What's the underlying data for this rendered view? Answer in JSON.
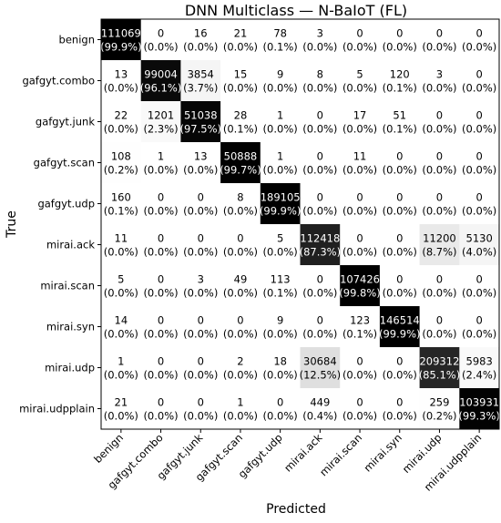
{
  "chart_data": {
    "type": "heatmap",
    "title": "DNN Multiclass — N-BaIoT (FL)",
    "xlabel": "Predicted",
    "ylabel": "True",
    "labels": [
      "benign",
      "gafgyt.combo",
      "gafgyt.junk",
      "gafgyt.scan",
      "gafgyt.udp",
      "mirai.ack",
      "mirai.scan",
      "mirai.syn",
      "mirai.udp",
      "mirai.udpplain"
    ],
    "matrix": [
      [
        111069,
        0,
        16,
        21,
        78,
        3,
        0,
        0,
        0,
        0
      ],
      [
        13,
        99004,
        3854,
        15,
        9,
        8,
        5,
        120,
        3,
        0
      ],
      [
        22,
        1201,
        51038,
        28,
        1,
        0,
        17,
        51,
        0,
        0
      ],
      [
        108,
        1,
        13,
        50888,
        1,
        0,
        11,
        0,
        0,
        0
      ],
      [
        160,
        0,
        0,
        8,
        189105,
        0,
        0,
        0,
        0,
        0
      ],
      [
        11,
        0,
        0,
        0,
        5,
        112418,
        0,
        0,
        11200,
        5130
      ],
      [
        5,
        0,
        3,
        49,
        113,
        0,
        107426,
        0,
        0,
        0
      ],
      [
        14,
        0,
        0,
        0,
        9,
        0,
        123,
        146514,
        0,
        0
      ],
      [
        1,
        0,
        0,
        2,
        18,
        30684,
        0,
        0,
        209312,
        5983
      ],
      [
        21,
        0,
        0,
        1,
        0,
        449,
        0,
        0,
        259,
        103931
      ]
    ],
    "percent": [
      [
        "99.9%",
        "0.0%",
        "0.0%",
        "0.0%",
        "0.1%",
        "0.0%",
        "0.0%",
        "0.0%",
        "0.0%",
        "0.0%"
      ],
      [
        "0.0%",
        "96.1%",
        "3.7%",
        "0.0%",
        "0.0%",
        "0.0%",
        "0.0%",
        "0.1%",
        "0.0%",
        "0.0%"
      ],
      [
        "0.0%",
        "2.3%",
        "97.5%",
        "0.1%",
        "0.0%",
        "0.0%",
        "0.0%",
        "0.1%",
        "0.0%",
        "0.0%"
      ],
      [
        "0.2%",
        "0.0%",
        "0.0%",
        "99.7%",
        "0.0%",
        "0.0%",
        "0.0%",
        "0.0%",
        "0.0%",
        "0.0%"
      ],
      [
        "0.1%",
        "0.0%",
        "0.0%",
        "0.0%",
        "99.9%",
        "0.0%",
        "0.0%",
        "0.0%",
        "0.0%",
        "0.0%"
      ],
      [
        "0.0%",
        "0.0%",
        "0.0%",
        "0.0%",
        "0.0%",
        "87.3%",
        "0.0%",
        "0.0%",
        "8.7%",
        "4.0%"
      ],
      [
        "0.0%",
        "0.0%",
        "0.0%",
        "0.0%",
        "0.1%",
        "0.0%",
        "99.8%",
        "0.0%",
        "0.0%",
        "0.0%"
      ],
      [
        "0.0%",
        "0.0%",
        "0.0%",
        "0.0%",
        "0.0%",
        "0.0%",
        "0.1%",
        "99.9%",
        "0.0%",
        "0.0%"
      ],
      [
        "0.0%",
        "0.0%",
        "0.0%",
        "0.0%",
        "0.0%",
        "12.5%",
        "0.0%",
        "0.0%",
        "85.1%",
        "2.4%"
      ],
      [
        "0.0%",
        "0.0%",
        "0.0%",
        "0.0%",
        "0.0%",
        "0.4%",
        "0.0%",
        "0.0%",
        "0.2%",
        "99.3%"
      ]
    ],
    "colormap": {
      "low": "#ffffff",
      "high": "#000000"
    },
    "grid": false,
    "legend": "none"
  }
}
